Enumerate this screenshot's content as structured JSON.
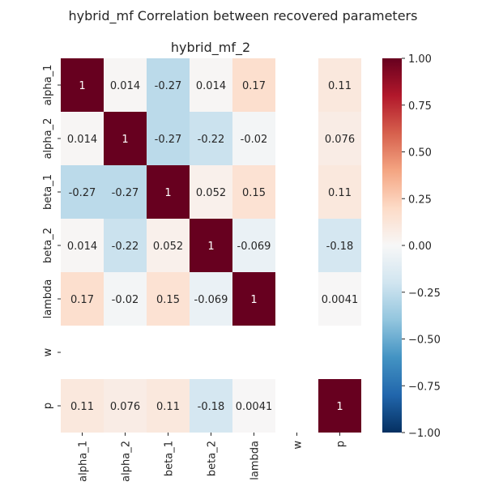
{
  "figure": {
    "suptitle": "hybrid_mf Correlation between recovered parameters"
  },
  "chart_data": {
    "type": "heatmap",
    "title": "hybrid_mf_2",
    "xlabel": "",
    "ylabel": "",
    "x_labels": [
      "alpha_1",
      "alpha_2",
      "beta_1",
      "beta_2",
      "lambda",
      "w",
      "p"
    ],
    "y_labels": [
      "alpha_1",
      "alpha_2",
      "beta_1",
      "beta_2",
      "lambda",
      "w",
      "p"
    ],
    "values": [
      [
        1,
        0.014,
        -0.27,
        0.014,
        0.17,
        null,
        0.11
      ],
      [
        0.014,
        1,
        -0.27,
        -0.22,
        -0.02,
        null,
        0.076
      ],
      [
        -0.27,
        -0.27,
        1,
        0.052,
        0.15,
        null,
        0.11
      ],
      [
        0.014,
        -0.22,
        0.052,
        1,
        -0.069,
        null,
        -0.18
      ],
      [
        0.17,
        -0.02,
        0.15,
        -0.069,
        1,
        null,
        0.0041
      ],
      [
        null,
        null,
        null,
        null,
        null,
        null,
        null
      ],
      [
        0.11,
        0.076,
        0.11,
        -0.18,
        0.0041,
        null,
        1
      ]
    ],
    "annotations": [
      [
        "1",
        "0.014",
        "-0.27",
        "0.014",
        "0.17",
        "",
        "0.11"
      ],
      [
        "0.014",
        "1",
        "-0.27",
        "-0.22",
        "-0.02",
        "",
        "0.076"
      ],
      [
        "-0.27",
        "-0.27",
        "1",
        "0.052",
        "0.15",
        "",
        "0.11"
      ],
      [
        "0.014",
        "-0.22",
        "0.052",
        "1",
        "-0.069",
        "",
        "-0.18"
      ],
      [
        "0.17",
        "-0.02",
        "0.15",
        "-0.069",
        "1",
        "",
        "0.0041"
      ],
      [
        "",
        "",
        "",
        "",
        "",
        "",
        ""
      ],
      [
        "0.11",
        "0.076",
        "0.11",
        "-0.18",
        "0.0041",
        "",
        "1"
      ]
    ],
    "vmin": -1,
    "vmax": 1,
    "colormap": "RdBu_r",
    "colorbar_ticks": [
      "1.00",
      "0.75",
      "0.50",
      "0.25",
      "0.00",
      "−0.25",
      "−0.50",
      "−0.75",
      "−1.00"
    ],
    "colorbar_tick_values": [
      1,
      0.75,
      0.5,
      0.25,
      0,
      -0.25,
      -0.5,
      -0.75,
      -1
    ],
    "grid": false
  }
}
